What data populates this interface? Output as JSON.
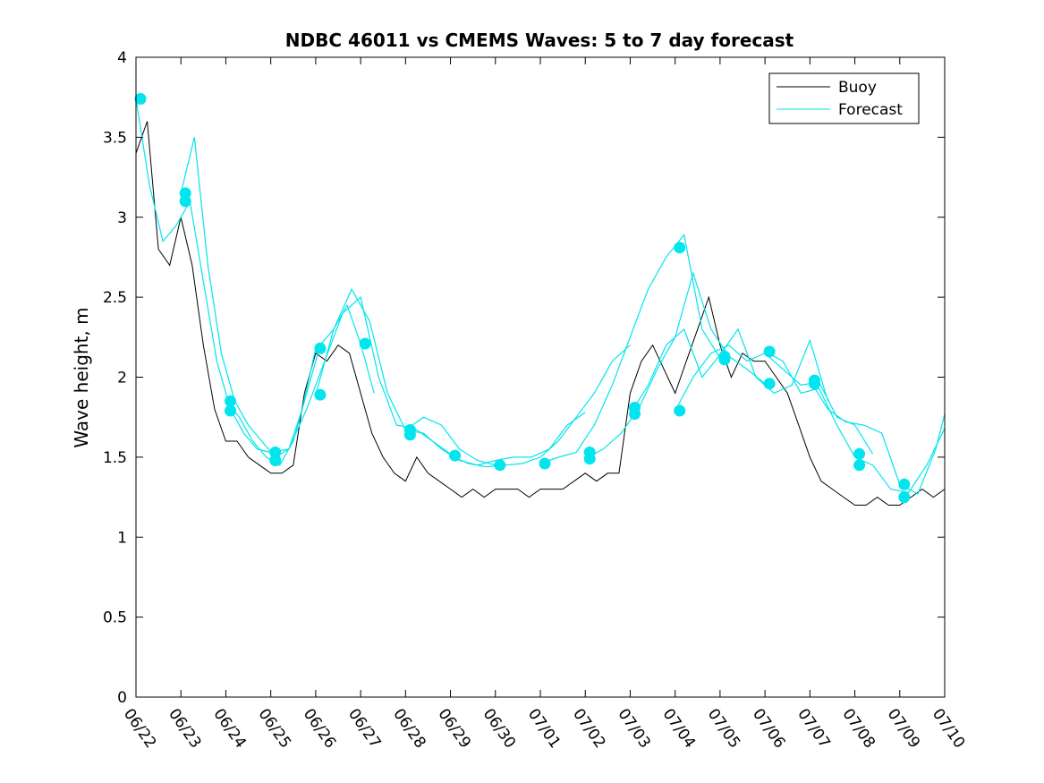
{
  "chart_data": {
    "type": "line",
    "title": "NDBC 46011 vs CMEMS Waves: 5 to 7 day forecast",
    "xlabel": "",
    "ylabel": "Wave height, m",
    "xlim": [
      "06/22",
      "07/10"
    ],
    "ylim": [
      0,
      4
    ],
    "x_ticks": [
      "06/22",
      "06/23",
      "06/24",
      "06/25",
      "06/26",
      "06/27",
      "06/28",
      "06/29",
      "06/30",
      "07/01",
      "07/02",
      "07/03",
      "07/04",
      "07/05",
      "07/06",
      "07/07",
      "07/08",
      "07/09",
      "07/10"
    ],
    "y_ticks": [
      0,
      0.5,
      1,
      1.5,
      2,
      2.5,
      3,
      3.5,
      4
    ],
    "y_tick_labels": [
      "0",
      "0.5",
      "1",
      "1.5",
      "2",
      "2.5",
      "3",
      "3.5",
      "4"
    ],
    "grid": false,
    "legend": {
      "position": "top-right",
      "entries": [
        "Buoy",
        "Forecast"
      ]
    },
    "colors": {
      "buoy": "#000000",
      "forecast": "#00e5ee"
    },
    "series": [
      {
        "name": "Buoy",
        "color": "#000000",
        "x_days": [
          0,
          0.25,
          0.5,
          0.75,
          1,
          1.25,
          1.5,
          1.75,
          2,
          2.25,
          2.5,
          2.75,
          3,
          3.25,
          3.5,
          3.75,
          4,
          4.25,
          4.5,
          4.75,
          5,
          5.25,
          5.5,
          5.75,
          6,
          6.25,
          6.5,
          6.75,
          7,
          7.25,
          7.5,
          7.75,
          8,
          8.25,
          8.5,
          8.75,
          9,
          9.25,
          9.5,
          9.75,
          10,
          10.25,
          10.5,
          10.75,
          11,
          11.25,
          11.5,
          11.75,
          12,
          12.25,
          12.5,
          12.75,
          13,
          13.25,
          13.5,
          13.75,
          14,
          14.25,
          14.5,
          14.75,
          15,
          15.25,
          15.5,
          15.75,
          16,
          16.25,
          16.5,
          16.75,
          17,
          17.25,
          17.5,
          17.75,
          18
        ],
        "values": [
          3.4,
          3.6,
          2.8,
          2.7,
          3.0,
          2.7,
          2.2,
          1.8,
          1.6,
          1.6,
          1.5,
          1.45,
          1.4,
          1.4,
          1.45,
          1.9,
          2.15,
          2.1,
          2.2,
          2.15,
          1.9,
          1.65,
          1.5,
          1.4,
          1.35,
          1.5,
          1.4,
          1.35,
          1.3,
          1.25,
          1.3,
          1.25,
          1.3,
          1.3,
          1.3,
          1.25,
          1.3,
          1.3,
          1.3,
          1.35,
          1.4,
          1.35,
          1.4,
          1.4,
          1.9,
          2.1,
          2.2,
          2.05,
          1.9,
          2.1,
          2.3,
          2.5,
          2.2,
          2.0,
          2.15,
          2.1,
          2.1,
          2.0,
          1.9,
          1.7,
          1.5,
          1.35,
          1.3,
          1.25,
          1.2,
          1.2,
          1.25,
          1.2,
          1.2,
          1.25,
          1.3,
          1.25,
          1.3
        ]
      },
      {
        "name": "Forecast",
        "color": "#00e5ee",
        "runs": [
          {
            "x_days": [
              0,
              0.3,
              0.6,
              0.9,
              1.2,
              1.5,
              1.8,
              2.1,
              2.4,
              2.7,
              3.0
            ],
            "values": [
              3.74,
              3.2,
              2.85,
              2.95,
              3.1,
              2.6,
              2.1,
              1.8,
              1.65,
              1.55,
              1.53
            ]
          },
          {
            "x_days": [
              1,
              1.3,
              1.6,
              1.9,
              2.2,
              2.5,
              2.8,
              3.1,
              3.4,
              3.7,
              4.0
            ],
            "values": [
              3.15,
              3.5,
              2.7,
              2.15,
              1.85,
              1.7,
              1.6,
              1.5,
              1.55,
              1.8,
              2.18
            ]
          },
          {
            "x_days": [
              2,
              2.3,
              2.6,
              2.9,
              3.2,
              3.5,
              3.8,
              4.1,
              4.4,
              4.7,
              5.0,
              5.3
            ],
            "values": [
              1.85,
              1.75,
              1.6,
              1.5,
              1.45,
              1.6,
              1.9,
              2.2,
              2.3,
              2.45,
              2.21,
              1.9
            ]
          },
          {
            "x_days": [
              3,
              3.4,
              3.8,
              4.2,
              4.6,
              5.0,
              5.4,
              5.8,
              6.2,
              6.6,
              7.0
            ],
            "values": [
              1.53,
              1.55,
              1.8,
              2.1,
              2.4,
              2.5,
              2.0,
              1.7,
              1.68,
              1.6,
              1.52
            ]
          },
          {
            "x_days": [
              4,
              4.4,
              4.8,
              5.2,
              5.6,
              6.0,
              6.4,
              6.8,
              7.2,
              7.6,
              8.0
            ],
            "values": [
              1.89,
              2.3,
              2.55,
              2.35,
              1.9,
              1.67,
              1.75,
              1.7,
              1.55,
              1.48,
              1.45
            ]
          },
          {
            "x_days": [
              6,
              6.4,
              6.8,
              7.2,
              7.6,
              8.0,
              8.4,
              8.8,
              9.2,
              9.6,
              10.0
            ],
            "values": [
              1.67,
              1.65,
              1.55,
              1.48,
              1.45,
              1.48,
              1.5,
              1.5,
              1.55,
              1.7,
              1.78
            ]
          },
          {
            "x_days": [
              7,
              7.4,
              7.8,
              8.2,
              8.6,
              9.0,
              9.4,
              9.8,
              10.2,
              10.6,
              11.0
            ],
            "values": [
              1.51,
              1.46,
              1.44,
              1.45,
              1.46,
              1.5,
              1.6,
              1.75,
              1.9,
              2.1,
              2.2
            ]
          },
          {
            "x_days": [
              9,
              9.4,
              9.8,
              10.2,
              10.6,
              11.0,
              11.4,
              11.8,
              12.2,
              12.6,
              13.0
            ],
            "values": [
              1.46,
              1.5,
              1.53,
              1.7,
              1.95,
              2.25,
              2.55,
              2.75,
              2.89,
              2.3,
              2.12
            ]
          },
          {
            "x_days": [
              10,
              10.4,
              10.8,
              11.2,
              11.6,
              12.0,
              12.4,
              12.8,
              13.2,
              13.6,
              14.0
            ],
            "values": [
              1.49,
              1.55,
              1.65,
              1.81,
              2.05,
              2.25,
              2.65,
              2.3,
              2.13,
              2.05,
              1.96
            ]
          },
          {
            "x_days": [
              11,
              11.4,
              11.8,
              12.2,
              12.6,
              13.0,
              13.4,
              13.8,
              14.2,
              14.6,
              15.0,
              15.4
            ],
            "values": [
              1.77,
              1.95,
              2.2,
              2.3,
              2.0,
              2.14,
              2.3,
              2.0,
              1.9,
              1.95,
              2.23,
              1.85
            ]
          },
          {
            "x_days": [
              12,
              12.4,
              12.8,
              13.2,
              13.6,
              14.0,
              14.4,
              14.8,
              15.2,
              15.6,
              16.0,
              16.4
            ],
            "values": [
              1.79,
              2.0,
              2.15,
              2.2,
              2.1,
              2.15,
              2.05,
              1.95,
              1.97,
              1.75,
              1.7,
              1.52
            ]
          },
          {
            "x_days": [
              14,
              14.4,
              14.8,
              15.2,
              15.6,
              16.0,
              16.4,
              16.8,
              17.2,
              17.6,
              18.0
            ],
            "values": [
              2.16,
              2.1,
              1.9,
              1.93,
              1.7,
              1.5,
              1.45,
              1.3,
              1.28,
              1.45,
              1.68
            ]
          },
          {
            "x_days": [
              15,
              15.4,
              15.8,
              16.2,
              16.6,
              17.0,
              17.4,
              17.8,
              18.0
            ],
            "values": [
              1.98,
              1.8,
              1.72,
              1.7,
              1.65,
              1.33,
              1.27,
              1.55,
              1.77
            ]
          }
        ],
        "markers": [
          {
            "x_day": 0.1,
            "value": 3.74
          },
          {
            "x_day": 1.1,
            "value": 3.15
          },
          {
            "x_day": 1.1,
            "value": 3.1
          },
          {
            "x_day": 2.1,
            "value": 1.85
          },
          {
            "x_day": 2.1,
            "value": 1.79
          },
          {
            "x_day": 3.1,
            "value": 1.53
          },
          {
            "x_day": 3.1,
            "value": 1.48
          },
          {
            "x_day": 4.1,
            "value": 2.18
          },
          {
            "x_day": 4.1,
            "value": 1.89
          },
          {
            "x_day": 5.1,
            "value": 2.21
          },
          {
            "x_day": 6.1,
            "value": 1.67
          },
          {
            "x_day": 6.1,
            "value": 1.64
          },
          {
            "x_day": 7.1,
            "value": 1.51
          },
          {
            "x_day": 8.1,
            "value": 1.45
          },
          {
            "x_day": 9.1,
            "value": 1.46
          },
          {
            "x_day": 10.1,
            "value": 1.53
          },
          {
            "x_day": 10.1,
            "value": 1.49
          },
          {
            "x_day": 11.1,
            "value": 1.81
          },
          {
            "x_day": 11.1,
            "value": 1.77
          },
          {
            "x_day": 12.1,
            "value": 2.81
          },
          {
            "x_day": 12.1,
            "value": 1.79
          },
          {
            "x_day": 13.1,
            "value": 2.13
          },
          {
            "x_day": 13.1,
            "value": 2.11
          },
          {
            "x_day": 14.1,
            "value": 2.16
          },
          {
            "x_day": 14.1,
            "value": 1.96
          },
          {
            "x_day": 15.1,
            "value": 1.98
          },
          {
            "x_day": 15.1,
            "value": 1.96
          },
          {
            "x_day": 16.1,
            "value": 1.52
          },
          {
            "x_day": 16.1,
            "value": 1.45
          },
          {
            "x_day": 17.1,
            "value": 1.33
          },
          {
            "x_day": 17.1,
            "value": 1.25
          }
        ]
      }
    ]
  }
}
